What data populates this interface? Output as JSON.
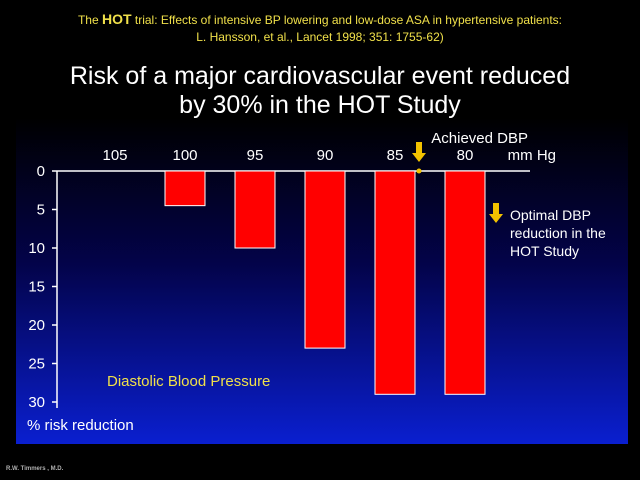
{
  "reference": {
    "line1_prefix": "The ",
    "line1_bold": "HOT",
    "line1_suffix": " trial: Effects of intensive BP lowering and low-dose ASA in hypertensive patients:",
    "line2": "L. Hansson, et al., Lancet 1998; 351: 1755-62)"
  },
  "title": {
    "line1": "Risk of a major cardiovascular event reduced",
    "line2": "by 30% in the HOT Study"
  },
  "footer": "R.W. Timmers , M.D.",
  "colors": {
    "reference_text": "#f0e04a",
    "bar": "#ff0000",
    "arrow": "#f2c200",
    "inner_label": "#f0e04a"
  },
  "chart_data": {
    "type": "bar",
    "categories": [
      "105",
      "100",
      "95",
      "90",
      "85",
      "80"
    ],
    "values": [
      0,
      4.5,
      10,
      23,
      29,
      29
    ],
    "y_axis_inverted": true,
    "ylim": [
      0,
      30
    ],
    "yticks": [
      "0",
      "5",
      "10",
      "15",
      "20",
      "25",
      "30"
    ],
    "ylabel": "% risk reduction",
    "x_axis_position": "top",
    "xlabel_line1": "Achieved DBP",
    "xlabel_line2": "mm Hg",
    "inner_label": "Diastolic Blood Pressure",
    "annotation": {
      "line1": "Optimal DBP",
      "line2": "reduction in the",
      "line3": "HOT Study",
      "marker": "down-arrow between 85 and 80"
    },
    "grid": false
  }
}
